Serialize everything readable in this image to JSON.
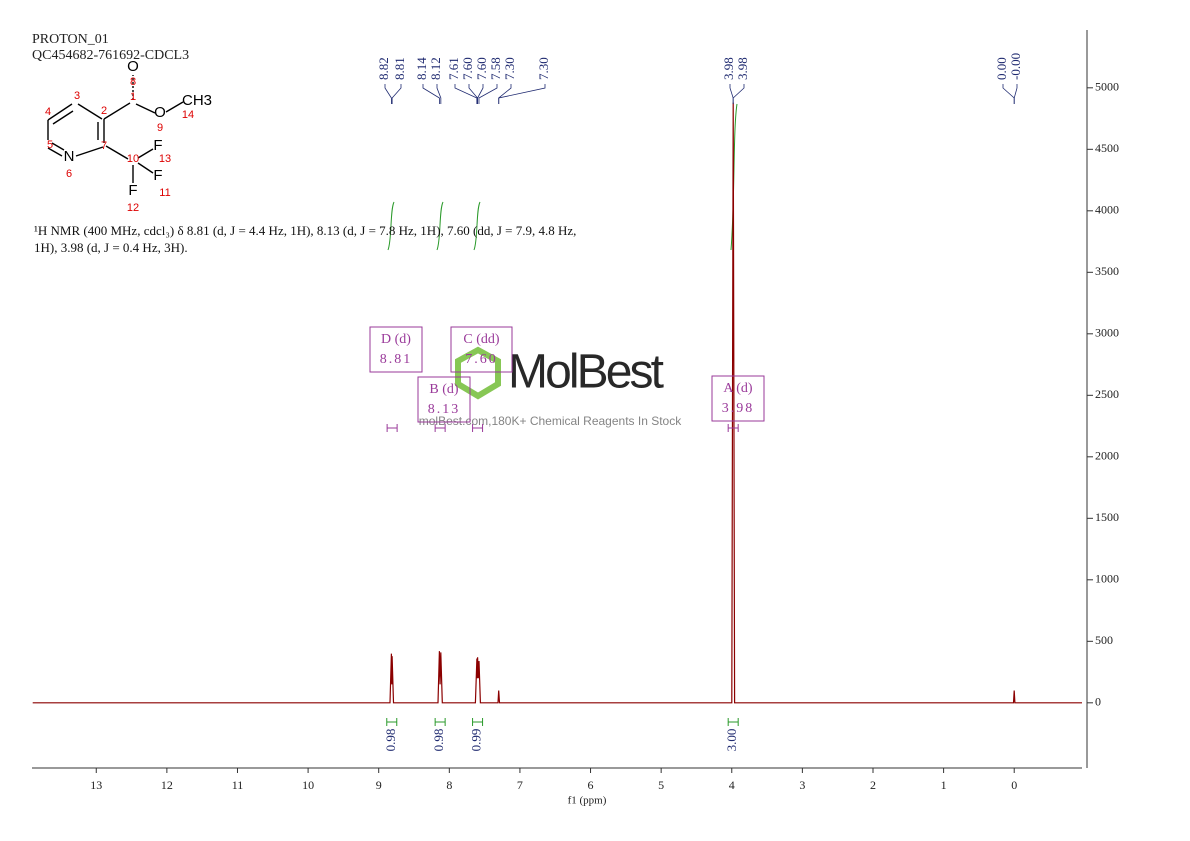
{
  "header": {
    "title": "PROTON_01",
    "subtitle": "QC454682-761692-CDCL3"
  },
  "structure": {
    "atoms": [
      "O",
      "8",
      "1",
      "O",
      "9",
      "CH3",
      "14",
      "3",
      "4",
      "2",
      "5",
      "N",
      "6",
      "7",
      "10",
      "F",
      "13",
      "F",
      "11",
      "F",
      "12"
    ]
  },
  "description": "¹H NMR (400 MHz, cdcl₃) δ 8.81 (d, J = 4.4 Hz, 1H), 8.13 (d, J = 7.8 Hz, 1H), 7.60 (dd, J = 7.9, 4.8 Hz, 1H), 3.98 (d, J = 0.4 Hz, 3H).",
  "watermark": {
    "brand": "MolBest",
    "slogan": "molBest.com,180K+ Chemical Reagents In Stock"
  },
  "chart_data": {
    "type": "line",
    "xlabel": "f1 (ppm)",
    "xlim": [
      13.91,
      -0.96
    ],
    "ylim": [
      -530,
      5470
    ],
    "xticks": [
      13,
      12,
      11,
      10,
      9,
      8,
      7,
      6,
      5,
      4,
      3,
      2,
      1,
      0
    ],
    "yticks": [
      0,
      500,
      1000,
      1500,
      2000,
      2500,
      3000,
      3500,
      4000,
      4500,
      5000
    ],
    "series": [
      {
        "color": "#8b0000",
        "x": [
          13.9,
          8.84,
          8.82,
          8.815,
          8.81,
          8.79,
          8.16,
          8.14,
          8.13,
          8.12,
          8.1,
          7.63,
          7.61,
          7.605,
          7.6,
          7.59,
          7.58,
          7.56,
          7.31,
          7.3,
          7.29,
          4.0,
          3.98,
          3.96,
          0.01,
          0.0,
          -0.01,
          -0.96
        ],
        "values": [
          0,
          0,
          400,
          150,
          380,
          0,
          0,
          420,
          150,
          410,
          0,
          0,
          360,
          200,
          370,
          200,
          340,
          0,
          0,
          100,
          0,
          0,
          4880,
          0,
          0,
          100,
          0,
          0
        ]
      }
    ],
    "peak_labels": [
      8.82,
      8.81,
      8.14,
      8.12,
      7.61,
      {
        "value": 7.6,
        "label": "7.60"
      },
      {
        "value": 7.6,
        "label": "7.60"
      },
      7.58,
      {
        "value": 7.3,
        "label": "7.30"
      },
      {
        "value": 7.3,
        "label": "7.30"
      },
      3.98,
      3.98,
      {
        "value": 0,
        "label": "0.00"
      },
      {
        "value": 0,
        "label": "-0.00"
      }
    ],
    "integrals": [
      0.98,
      0.98,
      0.99,
      {
        "value": 3,
        "label": "3.00"
      }
    ],
    "multiplets": [
      {
        "name": "D (d)",
        "shift": 8.81
      },
      {
        "name": "B (d)",
        "shift": 8.13
      },
      {
        "name": "C (dd)",
        "shift": {
          "value": 7.6,
          "label": "7.60"
        }
      },
      {
        "name": "A (d)",
        "shift": 3.98
      }
    ]
  }
}
